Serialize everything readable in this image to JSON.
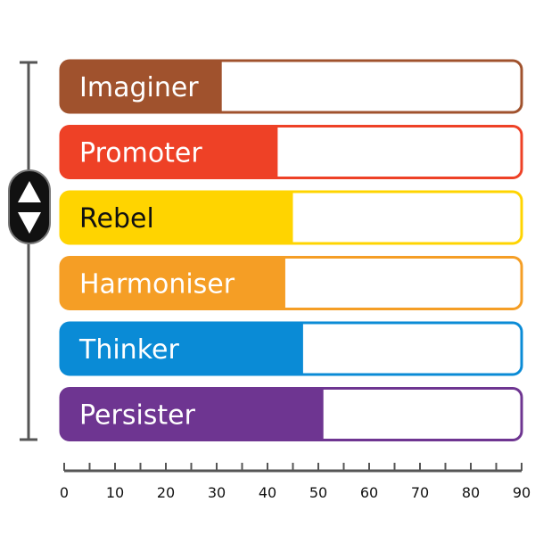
{
  "chart_data": {
    "type": "bar",
    "orientation": "horizontal",
    "categories": [
      "Imaginer",
      "Promoter",
      "Rebel",
      "Harmoniser",
      "Thinker",
      "Persister"
    ],
    "values": [
      31,
      42,
      45,
      43.5,
      47,
      51
    ],
    "colors": [
      "#a0522d",
      "#ee4126",
      "#ffd400",
      "#f59e25",
      "#0a8bd6",
      "#6e3591"
    ],
    "label_colors": [
      "#ffffff",
      "#ffffff",
      "#111111",
      "#ffffff",
      "#ffffff",
      "#ffffff"
    ],
    "xlim": [
      0,
      90
    ],
    "xticks": [
      "0",
      "10",
      "20",
      "30",
      "40",
      "50",
      "60",
      "70",
      "80",
      "90"
    ],
    "grid": false,
    "title": "",
    "xlabel": "",
    "ylabel": ""
  },
  "scroll_control": {
    "up_icon": "triangle-up-icon",
    "down_icon": "triangle-down-icon"
  }
}
